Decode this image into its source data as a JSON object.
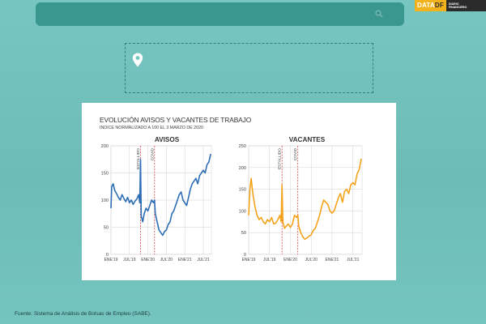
{
  "logo": {
    "left": "DATA",
    "accent": "DF",
    "sub_line1": "DIARIO",
    "sub_line2": "FINANCIERO"
  },
  "card": {
    "title": "EVOLUCIÓN AVISOS Y VACANTES DE TRABAJO",
    "subtitle": "INDICE NORMALIZADO A 100 EL 3 MARZO DE 2020"
  },
  "source": "Fuente: Sistema de Análisis de Bolsas de Empleo (SABE).",
  "chart_data": [
    {
      "type": "line",
      "title": "AVISOS",
      "ylim": [
        0,
        200
      ],
      "yticks": [
        0,
        50,
        100,
        150,
        200
      ],
      "xticks": [
        "ENE'19",
        "JUL'19",
        "ENE'20",
        "JUL'20",
        "ENE'21",
        "JUL'21"
      ],
      "xlim": [
        2019.0,
        2021.72
      ],
      "grid": true,
      "color": "#2c6db5",
      "annotations": [
        {
          "label": "ESTALLIDO",
          "x": 2019.8
        },
        {
          "label": "COVID",
          "x": 2020.18
        }
      ],
      "series": [
        {
          "x": [
            2019.0,
            2019.02,
            2019.06,
            2019.1,
            2019.15,
            2019.2,
            2019.25,
            2019.3,
            2019.35,
            2019.4,
            2019.45,
            2019.5,
            2019.55,
            2019.6,
            2019.65,
            2019.7,
            2019.75,
            2019.78,
            2019.8,
            2019.82,
            2019.86,
            2019.9,
            2019.95,
            2020.0,
            2020.05,
            2020.1,
            2020.15,
            2020.18,
            2020.2,
            2020.25,
            2020.3,
            2020.35,
            2020.4,
            2020.45,
            2020.5,
            2020.55,
            2020.6,
            2020.65,
            2020.7,
            2020.75,
            2020.8,
            2020.85,
            2020.9,
            2020.95,
            2021.0,
            2021.05,
            2021.1,
            2021.15,
            2021.2,
            2021.25,
            2021.3,
            2021.35,
            2021.4,
            2021.45,
            2021.5,
            2021.55,
            2021.6,
            2021.65,
            2021.7
          ],
          "y": [
            85,
            125,
            130,
            118,
            112,
            105,
            100,
            110,
            103,
            97,
            105,
            95,
            100,
            92,
            98,
            102,
            110,
            95,
            175,
            70,
            60,
            75,
            85,
            80,
            90,
            100,
            95,
            100,
            75,
            60,
            45,
            40,
            35,
            42,
            45,
            55,
            60,
            75,
            80,
            90,
            100,
            110,
            115,
            100,
            95,
            90,
            105,
            120,
            130,
            135,
            140,
            130,
            145,
            150,
            155,
            150,
            165,
            170,
            185
          ]
        }
      ]
    },
    {
      "type": "line",
      "title": "VACANTES",
      "ylim": [
        0,
        250
      ],
      "yticks": [
        0,
        50,
        100,
        150,
        200,
        250
      ],
      "xticks": [
        "ENE'19",
        "JUL'19",
        "ENE'20",
        "JUL'20",
        "ENE'21",
        "JUL'21"
      ],
      "xlim": [
        2019.0,
        2021.72
      ],
      "grid": true,
      "color": "#f4a31a",
      "annotations": [
        {
          "label": "ESTALLIDO",
          "x": 2019.8
        },
        {
          "label": "COVID",
          "x": 2020.18
        }
      ],
      "series": [
        {
          "x": [
            2019.0,
            2019.03,
            2019.06,
            2019.1,
            2019.15,
            2019.2,
            2019.25,
            2019.3,
            2019.35,
            2019.4,
            2019.45,
            2019.5,
            2019.55,
            2019.6,
            2019.65,
            2019.7,
            2019.75,
            2019.78,
            2019.8,
            2019.82,
            2019.86,
            2019.9,
            2019.95,
            2020.0,
            2020.05,
            2020.1,
            2020.15,
            2020.18,
            2020.2,
            2020.25,
            2020.3,
            2020.35,
            2020.4,
            2020.45,
            2020.5,
            2020.55,
            2020.6,
            2020.65,
            2020.7,
            2020.75,
            2020.8,
            2020.85,
            2020.9,
            2020.95,
            2021.0,
            2021.05,
            2021.1,
            2021.15,
            2021.2,
            2021.25,
            2021.3,
            2021.35,
            2021.4,
            2021.45,
            2021.5,
            2021.55,
            2021.6,
            2021.65,
            2021.7
          ],
          "y": [
            90,
            150,
            175,
            140,
            110,
            90,
            80,
            85,
            75,
            70,
            80,
            75,
            85,
            70,
            72,
            80,
            90,
            75,
            160,
            75,
            60,
            65,
            70,
            62,
            70,
            90,
            85,
            90,
            65,
            50,
            40,
            35,
            38,
            42,
            45,
            55,
            60,
            75,
            90,
            110,
            125,
            120,
            115,
            100,
            95,
            100,
            115,
            130,
            140,
            120,
            145,
            150,
            140,
            160,
            165,
            160,
            185,
            195,
            220
          ]
        }
      ]
    }
  ]
}
